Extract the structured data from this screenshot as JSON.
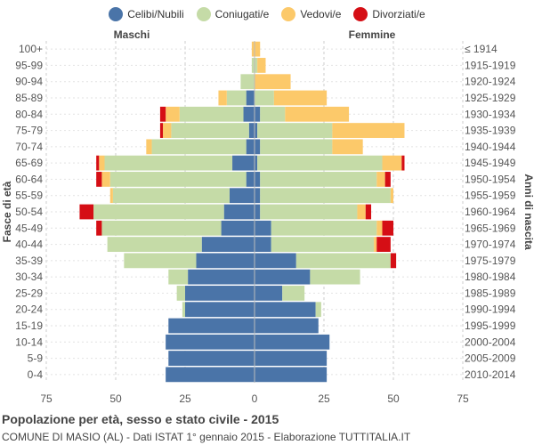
{
  "title": "Popolazione per età, sesso e stato civile - 2015",
  "subtitle": "COMUNE DI MASIO (AL) - Dati ISTAT 1° gennaio 2015 - Elaborazione TUTTITALIA.IT",
  "legend": [
    {
      "label": "Celibi/Nubili",
      "color": "#4a74a8"
    },
    {
      "label": "Coniugati/e",
      "color": "#c5dba7"
    },
    {
      "label": "Vedovi/e",
      "color": "#fcc96a"
    },
    {
      "label": "Divorziati/e",
      "color": "#d50e15"
    }
  ],
  "chart_data": {
    "type": "bar",
    "orientation": "horizontal-population-pyramid",
    "left_label": "Maschi",
    "right_label": "Femmine",
    "ylabel_left": "Fasce di età",
    "ylabel_right": "Anni di nascita",
    "xlim": [
      -75,
      75
    ],
    "xticks": [
      -75,
      -50,
      -25,
      0,
      25,
      50,
      75
    ],
    "xtick_labels": [
      "75",
      "50",
      "25",
      "0",
      "25",
      "50",
      "75"
    ],
    "age_groups": [
      "100+",
      "95-99",
      "90-94",
      "85-89",
      "80-84",
      "75-79",
      "70-74",
      "65-69",
      "60-64",
      "55-59",
      "50-54",
      "45-49",
      "40-44",
      "35-39",
      "30-34",
      "25-29",
      "20-24",
      "15-19",
      "10-14",
      "5-9",
      "0-4"
    ],
    "birth_years": [
      "≤ 1914",
      "1915-1919",
      "1920-1924",
      "1925-1929",
      "1930-1934",
      "1935-1939",
      "1940-1944",
      "1945-1949",
      "1950-1954",
      "1955-1959",
      "1960-1964",
      "1965-1969",
      "1970-1974",
      "1975-1979",
      "1980-1984",
      "1985-1989",
      "1990-1994",
      "1995-1999",
      "2000-2004",
      "2005-2009",
      "2010-2014"
    ],
    "series_order": [
      "Celibi/Nubili",
      "Coniugati/e",
      "Vedovi/e",
      "Divorziati/e"
    ],
    "males": {
      "Celibi/Nubili": [
        0,
        0,
        0,
        3,
        4,
        2,
        3,
        8,
        3,
        9,
        11,
        12,
        19,
        21,
        24,
        25,
        25,
        31,
        32,
        31,
        32
      ],
      "Coniugati/e": [
        0,
        1,
        5,
        7,
        23,
        28,
        34,
        46,
        49,
        42,
        47,
        43,
        34,
        26,
        7,
        3,
        1,
        0,
        0,
        0,
        0
      ],
      "Vedovi/e": [
        1,
        0,
        0,
        3,
        5,
        3,
        2,
        2,
        3,
        1,
        0,
        0,
        0,
        0,
        0,
        0,
        0,
        0,
        0,
        0,
        0
      ],
      "Divorziati/e": [
        0,
        0,
        0,
        0,
        2,
        1,
        0,
        1,
        2,
        0,
        5,
        2,
        0,
        0,
        0,
        0,
        0,
        0,
        0,
        0,
        0
      ]
    },
    "females": {
      "Celibi/Nubili": [
        0,
        0,
        0,
        0,
        2,
        1,
        2,
        1,
        2,
        2,
        2,
        6,
        6,
        15,
        20,
        10,
        22,
        23,
        27,
        26,
        26
      ],
      "Coniugati/e": [
        0,
        1,
        0,
        7,
        9,
        27,
        26,
        45,
        42,
        47,
        35,
        38,
        37,
        34,
        18,
        8,
        2,
        0,
        0,
        0,
        0
      ],
      "Vedovi/e": [
        2,
        3,
        13,
        19,
        23,
        26,
        11,
        7,
        3,
        1,
        3,
        2,
        1,
        0,
        0,
        0,
        0,
        0,
        0,
        0,
        0
      ],
      "Divorziati/e": [
        0,
        0,
        0,
        0,
        0,
        0,
        0,
        1,
        2,
        0,
        2,
        4,
        5,
        2,
        0,
        0,
        0,
        0,
        0,
        0,
        0
      ]
    }
  }
}
